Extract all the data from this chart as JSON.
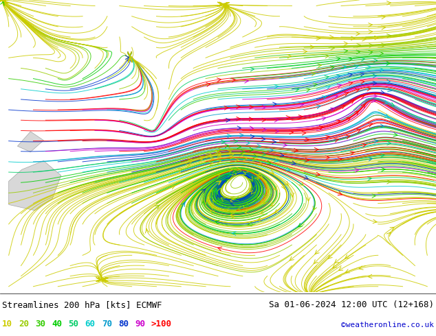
{
  "title_left": "Streamlines 200 hPa [kts] ECMWF",
  "title_right": "Sa 01-06-2024 12:00 UTC (12+168)",
  "credit": "©weatheronline.co.uk",
  "legend_labels": [
    "10",
    "20",
    "30",
    "40",
    "50",
    "60",
    "70",
    "80",
    "90",
    ">100"
  ],
  "legend_colors": [
    "#cccc00",
    "#99cc00",
    "#33cc00",
    "#00cc00",
    "#00cc66",
    "#00cccc",
    "#0099cc",
    "#0033cc",
    "#cc00cc",
    "#ff0000"
  ],
  "bg_color": "#f0f0f0",
  "fig_bg": "#ffffff",
  "bottom_bar_bg": "#ffffff",
  "text_color": "#000000",
  "font_size_title": 9,
  "font_size_legend": 9,
  "font_size_credit": 8
}
